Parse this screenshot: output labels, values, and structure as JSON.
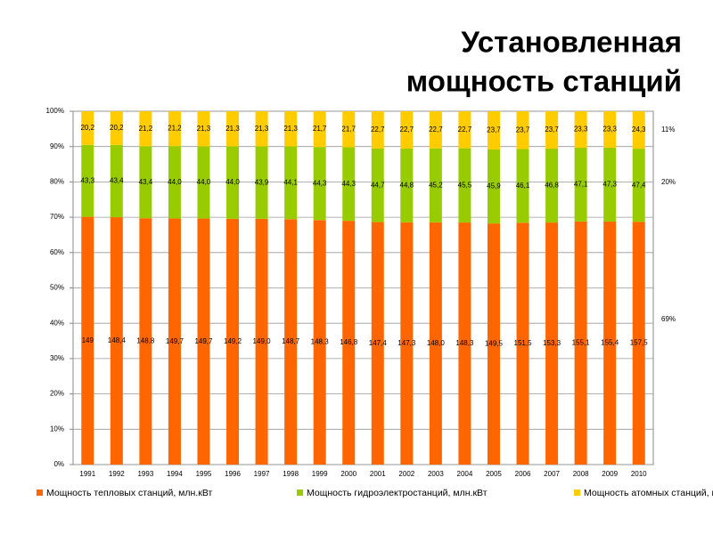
{
  "chart_data": {
    "type": "bar",
    "stacking": "percent",
    "title": [
      "Установленная",
      "мощность станций"
    ],
    "categories": [
      "1991",
      "1992",
      "1993",
      "1994",
      "1995",
      "1996",
      "1997",
      "1998",
      "1999",
      "2000",
      "2001",
      "2002",
      "2003",
      "2004",
      "2005",
      "2006",
      "2007",
      "2008",
      "2009",
      "2010"
    ],
    "series": [
      {
        "name": "Мощность тепловых станций, млн.кВт",
        "color": "#ff6600",
        "values": [
          149,
          148.4,
          148.8,
          149.7,
          149.7,
          149.2,
          149.0,
          148.7,
          148.3,
          146.8,
          147.4,
          147.3,
          148.0,
          148.3,
          149.5,
          151.5,
          153.3,
          155.1,
          155.4,
          157.5
        ],
        "value_labels": [
          "149",
          "148,4",
          "148,8",
          "149,7",
          "149,7",
          "149,2",
          "149,0",
          "148,7",
          "148,3",
          "146,8",
          "147,4",
          "147,3",
          "148,0",
          "148,3",
          "149,5",
          "151,5",
          "153,3",
          "155,1",
          "155,4",
          "157,5"
        ]
      },
      {
        "name": "Мощность гидроэлектростанций, млн.кВт",
        "color": "#99cc00",
        "values": [
          43.3,
          43.4,
          43.4,
          44.0,
          44.0,
          44.0,
          43.9,
          44.1,
          44.3,
          44.3,
          44.7,
          44.8,
          45.2,
          45.5,
          45.9,
          46.1,
          46.8,
          47.1,
          47.3,
          47.4
        ],
        "value_labels": [
          "43,3",
          "43,4",
          "43,4",
          "44,0",
          "44,0",
          "44,0",
          "43,9",
          "44,1",
          "44,3",
          "44,3",
          "44,7",
          "44,8",
          "45,2",
          "45,5",
          "45,9",
          "46,1",
          "46,8",
          "47,1",
          "47,3",
          "47,4"
        ]
      },
      {
        "name": "Мощность атомных станций, млн.кВт",
        "color": "#ffcc00",
        "values": [
          20.2,
          20.2,
          21.2,
          21.2,
          21.3,
          21.3,
          21.3,
          21.3,
          21.7,
          21.7,
          22.7,
          22.7,
          22.7,
          22.7,
          23.7,
          23.7,
          23.7,
          23.3,
          23.3,
          24.3
        ],
        "value_labels": [
          "20,2",
          "20,2",
          "21,2",
          "21,2",
          "21,3",
          "21,3",
          "21,3",
          "21,3",
          "21,7",
          "21,7",
          "22,7",
          "22,7",
          "22,7",
          "22,7",
          "23,7",
          "23,7",
          "23,7",
          "23,3",
          "23,3",
          "24,3"
        ]
      }
    ],
    "ylim": [
      0,
      100
    ],
    "yticks": [
      {
        "value": 0,
        "label": "0%"
      },
      {
        "value": 10,
        "label": "10%"
      },
      {
        "value": 20,
        "label": "20%"
      },
      {
        "value": 30,
        "label": "30%"
      },
      {
        "value": 40,
        "label": "40%"
      },
      {
        "value": 50,
        "label": "50%"
      },
      {
        "value": 60,
        "label": "60%"
      },
      {
        "value": 70,
        "label": "70%"
      },
      {
        "value": 80,
        "label": "80%"
      },
      {
        "value": 90,
        "label": "90%"
      },
      {
        "value": 100,
        "label": "100%"
      }
    ],
    "grid": true,
    "annotations": [
      "11%",
      "20%",
      "69%"
    ],
    "legend": "bottom"
  }
}
